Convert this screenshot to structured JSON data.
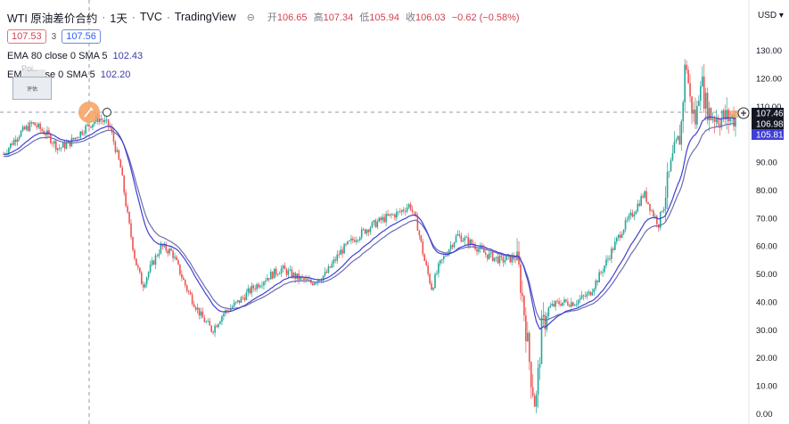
{
  "header": {
    "symbol_title": "WTI 原油差价合约",
    "interval": "1天",
    "source": "TVC",
    "platform": "TradingView",
    "eye_label": "⊖",
    "ohlc": [
      {
        "label": "开",
        "value": "106.65"
      },
      {
        "label": "高",
        "value": "107.34"
      },
      {
        "label": "低",
        "value": "105.94"
      },
      {
        "label": "收",
        "value": "106.03"
      },
      {
        "label": "",
        "value": "−0.62 (−0.58%)"
      }
    ]
  },
  "trade": {
    "sell_price": "107.53",
    "spread": "3",
    "buy_price": "107.56"
  },
  "indicators": [
    {
      "prefix": "EMA",
      "params": "80 close 0 SMA 5",
      "value": "102.43"
    },
    {
      "prefix": "EM",
      "params": "se 0 SMA 5",
      "value": "102.20"
    }
  ],
  "overlay": {
    "ghost_text": "Poi..",
    "popup_text": "评估"
  },
  "price_axis": {
    "currency": "USD",
    "ticks": [
      "130.00",
      "120.00",
      "110.00",
      "100.00",
      "90.00",
      "80.00",
      "70.00",
      "60.00",
      "50.00",
      "40.00",
      "30.00",
      "20.00",
      "10.00",
      "0.00"
    ],
    "tags": [
      {
        "label": "107.46",
        "color": "#131722"
      },
      {
        "label": "106.98",
        "color": "#131722"
      },
      {
        "label": "105.81",
        "color": "#3f3fd6"
      }
    ]
  },
  "colors": {
    "up": "#26a69a",
    "down": "#ef5350",
    "ema_a": "#3f3fd6",
    "ema_b": "#6c6cb0",
    "accent": "#f5a05c"
  },
  "chart_data": {
    "type": "line",
    "title": "WTI 原油差价合约 · 1天 · TVC",
    "ylim": [
      0,
      135
    ],
    "price_anchors": [
      [
        0,
        93
      ],
      [
        0.02,
        100
      ],
      [
        0.04,
        104
      ],
      [
        0.06,
        100
      ],
      [
        0.075,
        95
      ],
      [
        0.09,
        97
      ],
      [
        0.11,
        102
      ],
      [
        0.13,
        106
      ],
      [
        0.145,
        103
      ],
      [
        0.16,
        88
      ],
      [
        0.17,
        70
      ],
      [
        0.18,
        55
      ],
      [
        0.19,
        46
      ],
      [
        0.2,
        52
      ],
      [
        0.215,
        60
      ],
      [
        0.23,
        58
      ],
      [
        0.25,
        45
      ],
      [
        0.27,
        35
      ],
      [
        0.285,
        30
      ],
      [
        0.3,
        36
      ],
      [
        0.32,
        40
      ],
      [
        0.34,
        45
      ],
      [
        0.36,
        49
      ],
      [
        0.38,
        52
      ],
      [
        0.4,
        49
      ],
      [
        0.42,
        47
      ],
      [
        0.44,
        50
      ],
      [
        0.46,
        58
      ],
      [
        0.48,
        63
      ],
      [
        0.5,
        67
      ],
      [
        0.52,
        70
      ],
      [
        0.54,
        72
      ],
      [
        0.555,
        75
      ],
      [
        0.565,
        68
      ],
      [
        0.575,
        55
      ],
      [
        0.585,
        45
      ],
      [
        0.595,
        53
      ],
      [
        0.61,
        60
      ],
      [
        0.62,
        64
      ],
      [
        0.64,
        61
      ],
      [
        0.66,
        57
      ],
      [
        0.68,
        55
      ],
      [
        0.7,
        56
      ],
      [
        0.705,
        50
      ],
      [
        0.712,
        35
      ],
      [
        0.72,
        15
      ],
      [
        0.727,
        2
      ],
      [
        0.735,
        30
      ],
      [
        0.745,
        38
      ],
      [
        0.76,
        40
      ],
      [
        0.78,
        40
      ],
      [
        0.8,
        43
      ],
      [
        0.815,
        50
      ],
      [
        0.83,
        58
      ],
      [
        0.845,
        66
      ],
      [
        0.86,
        72
      ],
      [
        0.875,
        79
      ],
      [
        0.885,
        73
      ],
      [
        0.895,
        68
      ],
      [
        0.905,
        80
      ],
      [
        0.915,
        92
      ],
      [
        0.925,
        100
      ],
      [
        0.932,
        128
      ],
      [
        0.938,
        112
      ],
      [
        0.946,
        104
      ],
      [
        0.952,
        122
      ],
      [
        0.958,
        112
      ],
      [
        0.966,
        107
      ],
      [
        0.98,
        106
      ],
      [
        1,
        106
      ]
    ],
    "series": [
      {
        "name": "EMA 80 close 0 SMA 5",
        "last": 102.43
      },
      {
        "name": "EMA close 0 SMA 5",
        "last": 102.2
      }
    ]
  }
}
